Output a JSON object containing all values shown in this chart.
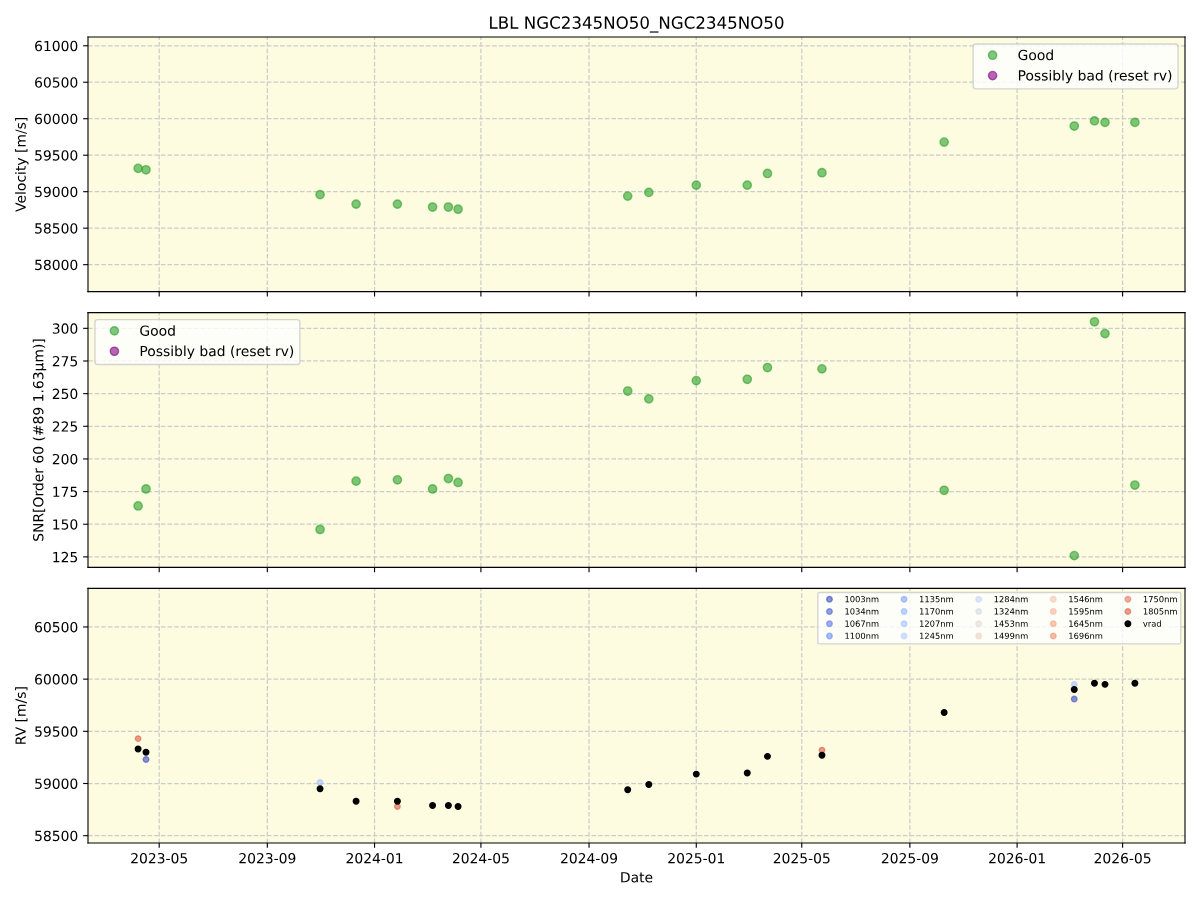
{
  "chart_data": [
    {
      "type": "scatter",
      "title": "LBL NGC2345NO50_NGC2345NO50",
      "ylabel": "Velocity [m/s]",
      "marker": "circle",
      "grid": true,
      "legend": "top right",
      "tick_labels": "y",
      "x": [
        "2023-04-07",
        "2023-04-16",
        "2023-10-31",
        "2023-12-11",
        "2024-01-27",
        "2024-03-07",
        "2024-03-25",
        "2024-04-05",
        "2024-10-15",
        "2024-11-08",
        "2025-01-01",
        "2025-02-28",
        "2025-03-23",
        "2025-05-24",
        "2025-10-10",
        "2026-03-07",
        "2026-03-30",
        "2026-04-11",
        "2026-05-15"
      ],
      "xlim": [
        "2023-02-09",
        "2026-07-11"
      ],
      "xticks": [
        "2023-05",
        "2023-09",
        "2024-01",
        "2024-05",
        "2024-09",
        "2025-01",
        "2025-05",
        "2025-09",
        "2026-01",
        "2026-05"
      ],
      "ylim": [
        57630,
        61120
      ],
      "yticks": [
        58000,
        58500,
        59000,
        59500,
        60000,
        60500,
        61000
      ],
      "series": [
        {
          "name": "Good",
          "color": "#2ca02c",
          "values": [
            59320,
            59300,
            58960,
            58830,
            58830,
            58790,
            58790,
            58760,
            58940,
            58990,
            59090,
            59090,
            59250,
            59260,
            59680,
            59900,
            59970,
            59950,
            59950
          ]
        },
        {
          "name": "Possibly bad (reset rv)",
          "color": "#800080",
          "values": [
            null,
            null,
            null,
            null,
            null,
            null,
            null,
            null,
            null,
            null,
            null,
            null,
            null,
            null,
            null,
            null,
            null,
            null,
            null
          ]
        }
      ]
    },
    {
      "type": "scatter",
      "ylabel": "SNR[Order 60 (#89 1.63μm)]",
      "marker": "circle",
      "grid": true,
      "legend": "top left",
      "tick_labels": "y",
      "x": [
        "2023-04-07",
        "2023-04-16",
        "2023-10-31",
        "2023-12-11",
        "2024-01-27",
        "2024-03-07",
        "2024-03-25",
        "2024-04-05",
        "2024-10-15",
        "2024-11-08",
        "2025-01-01",
        "2025-02-28",
        "2025-03-23",
        "2025-05-24",
        "2025-10-10",
        "2026-03-07",
        "2026-03-30",
        "2026-04-11",
        "2026-05-15"
      ],
      "xlim": [
        "2023-02-09",
        "2026-07-11"
      ],
      "xticks": [
        "2023-05",
        "2023-09",
        "2024-01",
        "2024-05",
        "2024-09",
        "2025-01",
        "2025-05",
        "2025-09",
        "2026-01",
        "2026-05"
      ],
      "ylim": [
        117,
        312
      ],
      "yticks": [
        125,
        150,
        175,
        200,
        225,
        250,
        275,
        300
      ],
      "series": [
        {
          "name": "Good",
          "color": "#2ca02c",
          "values": [
            164,
            177,
            146,
            183,
            184,
            177,
            185,
            182,
            252,
            246,
            260,
            261,
            270,
            269,
            176,
            126,
            305,
            296,
            180
          ]
        },
        {
          "name": "Possibly bad (reset rv)",
          "color": "#800080",
          "values": [
            null,
            null,
            null,
            null,
            null,
            null,
            null,
            null,
            null,
            null,
            null,
            null,
            null,
            null,
            null,
            null,
            null,
            null,
            null
          ]
        }
      ]
    },
    {
      "type": "scatter",
      "xlabel": "Date",
      "ylabel": "RV [m/s]",
      "marker": "circle",
      "grid": true,
      "legend": "top right",
      "x": [
        "2023-04-07",
        "2023-04-16",
        "2023-10-31",
        "2023-12-11",
        "2024-01-27",
        "2024-03-07",
        "2024-03-25",
        "2024-04-05",
        "2024-10-15",
        "2024-11-08",
        "2025-01-01",
        "2025-02-28",
        "2025-03-23",
        "2025-05-24",
        "2025-10-10",
        "2026-03-07",
        "2026-03-30",
        "2026-04-11",
        "2026-05-15"
      ],
      "xlim": [
        "2023-02-09",
        "2026-07-11"
      ],
      "xticks": [
        "2023-05",
        "2023-09",
        "2024-01",
        "2024-05",
        "2024-09",
        "2025-01",
        "2025-05",
        "2025-09",
        "2026-01",
        "2026-05"
      ],
      "ylim": [
        58430,
        60870
      ],
      "yticks": [
        58500,
        59000,
        59500,
        60000,
        60500
      ],
      "series": [
        {
          "name": "1003nm",
          "color": "#3b4cc0",
          "values": [
            null,
            59230,
            null,
            null,
            null,
            null,
            null,
            null,
            null,
            null,
            null,
            null,
            null,
            null,
            null,
            59810,
            null,
            null,
            null
          ]
        },
        {
          "name": "1034nm",
          "color": "#4a63d3",
          "values": [
            null,
            null,
            null,
            null,
            null,
            null,
            null,
            null,
            null,
            null,
            null,
            null,
            null,
            null,
            null,
            null,
            null,
            null,
            null
          ]
        },
        {
          "name": "1067nm",
          "color": "#5b7ae5",
          "values": [
            null,
            null,
            null,
            null,
            null,
            null,
            null,
            null,
            null,
            null,
            null,
            null,
            null,
            null,
            null,
            null,
            null,
            null,
            null
          ]
        },
        {
          "name": "1100nm",
          "color": "#6c8ff1",
          "values": [
            null,
            null,
            null,
            null,
            null,
            null,
            null,
            null,
            null,
            null,
            null,
            null,
            null,
            null,
            null,
            null,
            null,
            null,
            null
          ]
        },
        {
          "name": "1135nm",
          "color": "#7ea3f8",
          "values": [
            null,
            null,
            null,
            null,
            null,
            null,
            null,
            null,
            null,
            null,
            null,
            null,
            null,
            null,
            null,
            null,
            null,
            null,
            null
          ]
        },
        {
          "name": "1170nm",
          "color": "#90b5fe",
          "values": [
            null,
            null,
            null,
            null,
            null,
            null,
            null,
            null,
            null,
            null,
            null,
            null,
            null,
            null,
            null,
            null,
            null,
            null,
            null
          ]
        },
        {
          "name": "1207nm",
          "color": "#a2c1ff",
          "values": [
            null,
            null,
            59010,
            null,
            null,
            null,
            null,
            null,
            null,
            null,
            null,
            null,
            null,
            null,
            null,
            59950,
            null,
            null,
            null
          ]
        },
        {
          "name": "1245nm",
          "color": "#b3cdfb",
          "values": [
            null,
            null,
            null,
            null,
            null,
            null,
            null,
            null,
            null,
            null,
            null,
            null,
            null,
            null,
            null,
            null,
            null,
            null,
            null
          ]
        },
        {
          "name": "1284nm",
          "color": "#c4d5f3",
          "values": [
            null,
            null,
            null,
            null,
            null,
            null,
            null,
            null,
            null,
            null,
            null,
            null,
            null,
            null,
            null,
            null,
            null,
            null,
            null
          ]
        },
        {
          "name": "1324nm",
          "color": "#d4dbe6",
          "values": [
            null,
            null,
            null,
            null,
            null,
            null,
            null,
            null,
            null,
            null,
            null,
            null,
            null,
            null,
            null,
            null,
            null,
            null,
            null
          ]
        },
        {
          "name": "1453nm",
          "color": "#e2dad5",
          "values": [
            null,
            null,
            null,
            null,
            null,
            null,
            null,
            null,
            null,
            null,
            null,
            null,
            null,
            null,
            null,
            null,
            null,
            null,
            null
          ]
        },
        {
          "name": "1499nm",
          "color": "#edd1c2",
          "values": [
            null,
            null,
            null,
            null,
            null,
            null,
            null,
            null,
            null,
            null,
            null,
            null,
            null,
            null,
            null,
            null,
            null,
            null,
            null
          ]
        },
        {
          "name": "1546nm",
          "color": "#f4c5ad",
          "values": [
            null,
            null,
            null,
            null,
            null,
            null,
            null,
            null,
            null,
            null,
            null,
            null,
            null,
            null,
            null,
            null,
            null,
            null,
            null
          ]
        },
        {
          "name": "1595nm",
          "color": "#f6b69a",
          "values": [
            null,
            null,
            null,
            null,
            null,
            null,
            null,
            null,
            null,
            null,
            null,
            null,
            null,
            null,
            null,
            null,
            null,
            null,
            null
          ]
        },
        {
          "name": "1645nm",
          "color": "#f5a385",
          "values": [
            null,
            null,
            null,
            null,
            null,
            null,
            null,
            null,
            null,
            null,
            null,
            null,
            null,
            null,
            null,
            null,
            null,
            null,
            null
          ]
        },
        {
          "name": "1696nm",
          "color": "#f08f71",
          "values": [
            null,
            null,
            null,
            null,
            null,
            null,
            null,
            null,
            null,
            null,
            null,
            null,
            null,
            null,
            null,
            null,
            null,
            null,
            null
          ]
        },
        {
          "name": "1750nm",
          "color": "#e7755b",
          "values": [
            null,
            null,
            null,
            null,
            null,
            null,
            null,
            null,
            null,
            null,
            null,
            null,
            null,
            null,
            null,
            null,
            null,
            null,
            null
          ]
        },
        {
          "name": "1805nm",
          "color": "#dc5d4a",
          "values": [
            59430,
            null,
            null,
            null,
            58780,
            null,
            null,
            null,
            null,
            null,
            null,
            null,
            null,
            59320,
            null,
            null,
            null,
            null,
            null
          ]
        },
        {
          "name": "vrad",
          "color": "#000000",
          "values": [
            59330,
            59300,
            58950,
            58830,
            58830,
            58790,
            58790,
            58780,
            58940,
            58990,
            59090,
            59100,
            59260,
            59270,
            59680,
            59900,
            59960,
            59950,
            59960
          ]
        }
      ]
    }
  ]
}
